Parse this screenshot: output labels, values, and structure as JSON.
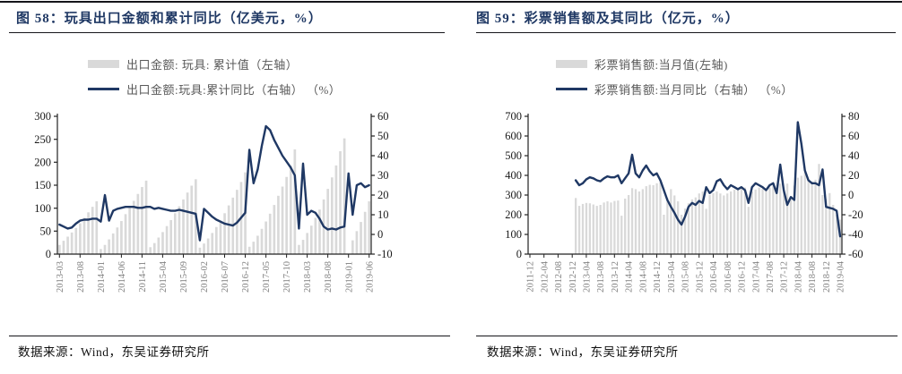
{
  "page": {
    "bar_color": "#d9d9d9",
    "line_color": "#1f3864",
    "title_color": "#1f3864"
  },
  "source_note": "数据来源：Wind，东吴证券研究所",
  "charts": [
    {
      "figure_title": "图 58：玩具出口金额和累计同比（亿美元，%）",
      "legend": {
        "bar": "出口金额: 玩具: 累计值（左轴）",
        "line": "出口金额:玩具:累计同比（右轴） （%）"
      },
      "chart_data": {
        "type": "bar+line",
        "x_frequency": "monthly",
        "x_start": "2013-03",
        "x_end": "2019-06",
        "x_tick_every": 5,
        "x_tick_labels": [
          "2013-03",
          "2013-08",
          "2014-01",
          "2014-06",
          "2014-11",
          "2015-04",
          "2015-09",
          "2016-02",
          "2016-07",
          "2016-12",
          "2017-05",
          "2017-10",
          "2018-03",
          "2018-08",
          "2019-01",
          "2019-06"
        ],
        "left_axis": {
          "min": 0,
          "max": 300,
          "step": 50
        },
        "right_axis": {
          "min": -10,
          "max": 60,
          "step": 10
        },
        "series": [
          {
            "name": "出口金额: 玩具: 累计值（左轴）",
            "type": "bar",
            "axis": "left",
            "color": "#d9d9d9",
            "values": [
              20,
              29,
              38,
              47,
              57,
              67,
              79,
              91,
              103,
              115,
              11,
              20,
              32,
              45,
              58,
              72,
              87,
              101,
              116,
              131,
              146,
              160,
              15,
              24,
              36,
              48,
              61,
              74,
              89,
              104,
              119,
              134,
              149,
              163,
              14,
              23,
              34,
              46,
              59,
              73,
              89,
              106,
              123,
              140,
              157,
              178,
              16,
              27,
              40,
              55,
              71,
              88,
              107,
              127,
              147,
              168,
              193,
              228,
              20,
              31,
              46,
              62,
              79,
              97,
              119,
              142,
              167,
              193,
              224,
              252,
              null,
              30,
              50,
              70,
              92,
              115
            ]
          },
          {
            "name": "出口金额:玩具:累计同比（右轴）（%）",
            "type": "line",
            "axis": "right",
            "color": "#1f3864",
            "values": [
              5,
              4,
              3,
              3.5,
              5.5,
              7,
              7.5,
              7.5,
              8,
              8,
              6.5,
              20,
              7,
              12,
              13,
              13.5,
              14,
              14,
              14,
              13.5,
              13.5,
              14,
              14,
              13,
              13.5,
              13,
              12.5,
              12,
              12,
              12.5,
              12,
              11.5,
              11,
              10.5,
              -3,
              13,
              11,
              9,
              7.5,
              6.5,
              5.5,
              5,
              4.5,
              6,
              8.5,
              11,
              43,
              26,
              33,
              45,
              55,
              53,
              48,
              44,
              40,
              37,
              34,
              30,
              3,
              36,
              10,
              12,
              11,
              8,
              4,
              2.5,
              3,
              2.5,
              3.5,
              4,
              31,
              10,
              25,
              26,
              24,
              25
            ]
          }
        ]
      }
    },
    {
      "figure_title": "图 59：彩票销售额及其同比（亿元，%）",
      "legend": {
        "bar": "彩票销售额:当月值(左轴)",
        "line": "彩票销售额:当月同比（右轴） （%）"
      },
      "chart_data": {
        "type": "bar+line",
        "x_frequency": "monthly",
        "x_start": "2011-12",
        "x_end": "2019-04",
        "x_tick_every": 4,
        "x_tick_labels": [
          "2011-12",
          "2012-04",
          "2012-08",
          "2012-12",
          "2013-04",
          "2013-08",
          "2013-12",
          "2014-04",
          "2014-08",
          "2014-12",
          "2015-04",
          "2015-08",
          "2015-12",
          "2016-04",
          "2016-08",
          "2016-12",
          "2017-04",
          "2017-08",
          "2017-12",
          "2018-04",
          "2018-08",
          "2018-12",
          "2019-04"
        ],
        "left_axis": {
          "min": 0,
          "max": 700,
          "step": 100
        },
        "right_axis": {
          "min": -60,
          "max": 80,
          "step": 20
        },
        "series": [
          {
            "name": "彩票销售额:当月值(左轴)",
            "type": "bar",
            "axis": "left",
            "color": "#d9d9d9",
            "values": [
              null,
              null,
              null,
              null,
              null,
              null,
              null,
              null,
              null,
              null,
              null,
              null,
              null,
              285,
              245,
              255,
              260,
              258,
              252,
              245,
              250,
              262,
              268,
              262,
              270,
              272,
              195,
              282,
              300,
              335,
              330,
              318,
              330,
              345,
              352,
              350,
              360,
              365,
              200,
              285,
              330,
              298,
              268,
              200,
              232,
              258,
              278,
              288,
              308,
              318,
              230,
              300,
              310,
              318,
              308,
              298,
              308,
              318,
              328,
              332,
              338,
              338,
              240,
              318,
              328,
              338,
              332,
              328,
              338,
              348,
              328,
              358,
              328,
              358,
              280,
              348,
              388,
              398,
              418,
              378,
              368,
              378,
              458,
              300,
              280,
              310,
              250,
              200,
              175
            ]
          },
          {
            "name": "彩票销售额:当月同比（右轴）（%）",
            "type": "line",
            "axis": "right",
            "color": "#1f3864",
            "values": [
              null,
              null,
              null,
              null,
              null,
              null,
              null,
              null,
              null,
              null,
              null,
              null,
              null,
              15,
              10,
              12,
              16,
              18,
              17,
              15,
              14,
              17,
              19,
              18,
              18,
              20,
              12,
              17,
              22,
              41,
              22,
              18,
              25,
              30,
              24,
              20,
              22,
              15,
              5,
              -5,
              -12,
              -18,
              -25,
              -30,
              -22,
              -12,
              -8,
              -10,
              -6,
              -8,
              8,
              2,
              5,
              14,
              16,
              10,
              6,
              10,
              8,
              6,
              8,
              5,
              -8,
              8,
              12,
              10,
              8,
              5,
              10,
              12,
              2,
              31,
              5,
              -10,
              -2,
              -5,
              74,
              52,
              25,
              15,
              12,
              12,
              10,
              26,
              -12,
              -13,
              -14,
              -16,
              -42
            ]
          }
        ]
      }
    }
  ]
}
